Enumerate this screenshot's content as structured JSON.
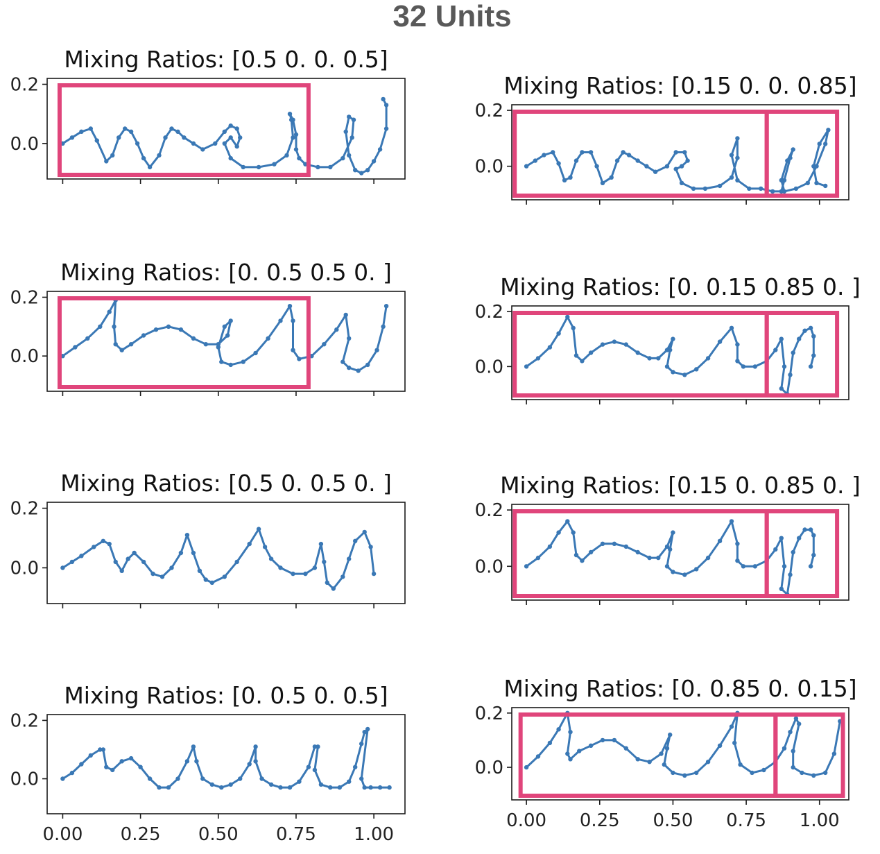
{
  "figure": {
    "title": "32 Units",
    "colors": {
      "series": "#3a78b5",
      "highlight": "#e0457b",
      "axis": "#1a1a1a"
    }
  },
  "chart_data": [
    {
      "type": "line",
      "title": "Mixing Ratios: [0.5 0.  0.  0.5]",
      "xlim": [
        -0.05,
        1.1
      ],
      "ylim": [
        -0.12,
        0.22
      ],
      "yticks": [
        "0.0",
        "0.2"
      ],
      "xticks": [
        "0.00",
        "0.25",
        "0.50",
        "0.75",
        "1.00"
      ],
      "show_x_tick_labels": false,
      "highlight_x": [
        [
          -0.01,
          0.79
        ]
      ],
      "series": [
        {
          "x": [
            0.0,
            0.03,
            0.06,
            0.09,
            0.11,
            0.14,
            0.16,
            0.18,
            0.2,
            0.22,
            0.24,
            0.26,
            0.28,
            0.31,
            0.33,
            0.35,
            0.37,
            0.39,
            0.42,
            0.45,
            0.49,
            0.52,
            0.54,
            0.56,
            0.57,
            0.56,
            0.54,
            0.52,
            0.54,
            0.58,
            0.63,
            0.68,
            0.72,
            0.74,
            0.735,
            0.73,
            0.74,
            0.75,
            0.75,
            0.76,
            0.78,
            0.82,
            0.86,
            0.9,
            0.93,
            0.935,
            0.92,
            0.91,
            0.92,
            0.94,
            0.96,
            0.98,
            1.0,
            1.02,
            1.04,
            1.04,
            1.03
          ],
          "y": [
            0.0,
            0.02,
            0.04,
            0.05,
            0.01,
            -0.06,
            -0.04,
            0.02,
            0.05,
            0.04,
            0.0,
            -0.05,
            -0.08,
            -0.04,
            0.02,
            0.05,
            0.04,
            0.02,
            0.0,
            -0.02,
            0.0,
            0.04,
            0.06,
            0.05,
            0.02,
            -0.01,
            0.02,
            0.0,
            -0.05,
            -0.08,
            -0.08,
            -0.07,
            -0.04,
            0.02,
            0.08,
            0.1,
            0.08,
            0.03,
            -0.02,
            -0.05,
            -0.07,
            -0.08,
            -0.08,
            -0.05,
            0.02,
            0.08,
            0.09,
            0.04,
            -0.04,
            -0.09,
            -0.1,
            -0.09,
            -0.06,
            -0.02,
            0.05,
            0.13,
            0.15
          ]
        }
      ]
    },
    {
      "type": "line",
      "title": "Mixing Ratios: [0.15 0.   0.   0.85]",
      "xlim": [
        -0.05,
        1.1
      ],
      "ylim": [
        -0.12,
        0.22
      ],
      "yticks": [
        "0.0",
        "0.2"
      ],
      "xticks": [
        "0.00",
        "0.25",
        "0.50",
        "0.75",
        "1.00"
      ],
      "show_x_tick_labels": false,
      "highlight_x": [
        [
          -0.04,
          0.82
        ],
        [
          0.82,
          1.06
        ]
      ],
      "series": [
        {
          "x": [
            0.0,
            0.03,
            0.06,
            0.09,
            0.11,
            0.13,
            0.15,
            0.17,
            0.19,
            0.22,
            0.24,
            0.26,
            0.29,
            0.31,
            0.33,
            0.35,
            0.38,
            0.41,
            0.44,
            0.48,
            0.51,
            0.54,
            0.55,
            0.53,
            0.51,
            0.53,
            0.57,
            0.61,
            0.66,
            0.7,
            0.72,
            0.72,
            0.7,
            0.72,
            0.76,
            0.8,
            0.84,
            0.87,
            0.88,
            0.9,
            0.91,
            0.89,
            0.87,
            0.88,
            0.92,
            0.96,
            0.99,
            1.02,
            1.03,
            1.0,
            0.98,
            0.99,
            1.02
          ],
          "y": [
            0.0,
            0.02,
            0.04,
            0.05,
            0.01,
            -0.05,
            -0.04,
            0.02,
            0.05,
            0.05,
            0.0,
            -0.06,
            -0.04,
            0.02,
            0.05,
            0.04,
            0.02,
            0.0,
            -0.02,
            0.0,
            0.05,
            0.05,
            0.02,
            0.0,
            -0.01,
            -0.06,
            -0.08,
            -0.08,
            -0.07,
            -0.04,
            0.03,
            0.1,
            0.04,
            -0.05,
            -0.08,
            -0.08,
            -0.09,
            -0.09,
            -0.05,
            0.03,
            0.06,
            0.02,
            -0.05,
            -0.09,
            -0.08,
            -0.06,
            0.0,
            0.08,
            0.13,
            0.08,
            0.0,
            -0.06,
            -0.07
          ]
        }
      ]
    },
    {
      "type": "line",
      "title": "Mixing Ratios: [0.  0.5 0.5 0. ]",
      "xlim": [
        -0.05,
        1.1
      ],
      "ylim": [
        -0.12,
        0.22
      ],
      "yticks": [
        "0.0",
        "0.2"
      ],
      "xticks": [
        "0.00",
        "0.25",
        "0.50",
        "0.75",
        "1.00"
      ],
      "show_x_tick_labels": false,
      "highlight_x": [
        [
          -0.01,
          0.79
        ]
      ],
      "series": [
        {
          "x": [
            0.0,
            0.04,
            0.08,
            0.12,
            0.15,
            0.17,
            0.165,
            0.17,
            0.19,
            0.22,
            0.26,
            0.3,
            0.34,
            0.38,
            0.42,
            0.46,
            0.5,
            0.53,
            0.54,
            0.52,
            0.5,
            0.51,
            0.54,
            0.58,
            0.62,
            0.66,
            0.7,
            0.73,
            0.74,
            0.74,
            0.76,
            0.8,
            0.84,
            0.88,
            0.91,
            0.92,
            0.9,
            0.92,
            0.95,
            0.98,
            1.01,
            1.03,
            1.04
          ],
          "y": [
            0.0,
            0.03,
            0.06,
            0.1,
            0.15,
            0.19,
            0.1,
            0.04,
            0.02,
            0.04,
            0.07,
            0.09,
            0.1,
            0.09,
            0.06,
            0.04,
            0.04,
            0.07,
            0.12,
            0.1,
            0.03,
            -0.02,
            -0.03,
            -0.02,
            0.01,
            0.06,
            0.12,
            0.17,
            0.12,
            0.02,
            -0.01,
            0.0,
            0.04,
            0.09,
            0.14,
            0.06,
            -0.02,
            -0.04,
            -0.05,
            -0.03,
            0.02,
            0.1,
            0.17
          ]
        }
      ]
    },
    {
      "type": "line",
      "title": "Mixing Ratios: [0.   0.15 0.85 0.  ]",
      "xlim": [
        -0.05,
        1.1
      ],
      "ylim": [
        -0.12,
        0.22
      ],
      "yticks": [
        "0.0",
        "0.2"
      ],
      "xticks": [
        "0.00",
        "0.25",
        "0.50",
        "0.75",
        "1.00"
      ],
      "show_x_tick_labels": false,
      "highlight_x": [
        [
          -0.04,
          0.82
        ],
        [
          0.82,
          1.06
        ]
      ],
      "series": [
        {
          "x": [
            0.0,
            0.04,
            0.08,
            0.11,
            0.14,
            0.16,
            0.17,
            0.19,
            0.22,
            0.26,
            0.3,
            0.34,
            0.38,
            0.42,
            0.45,
            0.48,
            0.5,
            0.49,
            0.48,
            0.5,
            0.54,
            0.58,
            0.62,
            0.66,
            0.7,
            0.72,
            0.72,
            0.74,
            0.78,
            0.82,
            0.85,
            0.87,
            0.88,
            0.87,
            0.89,
            0.9,
            0.91,
            0.93,
            0.95,
            0.97,
            0.98,
            0.98,
            0.97
          ],
          "y": [
            0.0,
            0.03,
            0.07,
            0.12,
            0.18,
            0.14,
            0.04,
            0.02,
            0.05,
            0.08,
            0.09,
            0.08,
            0.05,
            0.03,
            0.03,
            0.06,
            0.1,
            0.06,
            0.0,
            -0.02,
            -0.03,
            -0.01,
            0.03,
            0.09,
            0.14,
            0.08,
            0.02,
            0.0,
            0.0,
            0.02,
            0.06,
            0.1,
            0.0,
            -0.08,
            -0.1,
            -0.03,
            0.05,
            0.1,
            0.13,
            0.14,
            0.11,
            0.04,
            0.0
          ]
        }
      ]
    },
    {
      "type": "line",
      "title": "Mixing Ratios: [0.5 0.  0.5 0. ]",
      "xlim": [
        -0.05,
        1.1
      ],
      "ylim": [
        -0.12,
        0.22
      ],
      "yticks": [
        "0.0",
        "0.2"
      ],
      "xticks": [
        "0.00",
        "0.25",
        "0.50",
        "0.75",
        "1.00"
      ],
      "show_x_tick_labels": false,
      "highlight_x": [],
      "series": [
        {
          "x": [
            0.0,
            0.03,
            0.06,
            0.1,
            0.13,
            0.15,
            0.17,
            0.19,
            0.21,
            0.23,
            0.26,
            0.29,
            0.32,
            0.35,
            0.38,
            0.4,
            0.42,
            0.44,
            0.46,
            0.48,
            0.52,
            0.56,
            0.6,
            0.63,
            0.65,
            0.67,
            0.7,
            0.74,
            0.78,
            0.81,
            0.83,
            0.84,
            0.85,
            0.87,
            0.9,
            0.92,
            0.94,
            0.97,
            0.99,
            1.0
          ],
          "y": [
            0.0,
            0.02,
            0.04,
            0.07,
            0.09,
            0.08,
            0.02,
            -0.01,
            0.03,
            0.05,
            0.02,
            -0.02,
            -0.03,
            0.0,
            0.05,
            0.11,
            0.05,
            -0.01,
            -0.04,
            -0.05,
            -0.03,
            0.02,
            0.08,
            0.13,
            0.07,
            0.03,
            0.0,
            -0.02,
            -0.02,
            0.0,
            0.08,
            0.02,
            -0.05,
            -0.07,
            -0.03,
            0.03,
            0.09,
            0.12,
            0.07,
            -0.02
          ]
        }
      ]
    },
    {
      "type": "line",
      "title": "Mixing Ratios: [0.15 0.   0.85 0.  ]",
      "xlim": [
        -0.05,
        1.1
      ],
      "ylim": [
        -0.12,
        0.22
      ],
      "yticks": [
        "0.0",
        "0.2"
      ],
      "xticks": [
        "0.00",
        "0.25",
        "0.50",
        "0.75",
        "1.00"
      ],
      "show_x_tick_labels": false,
      "highlight_x": [
        [
          -0.04,
          0.82
        ],
        [
          0.82,
          1.06
        ]
      ],
      "series": [
        {
          "x": [
            0.0,
            0.04,
            0.08,
            0.11,
            0.14,
            0.16,
            0.17,
            0.19,
            0.22,
            0.26,
            0.3,
            0.34,
            0.38,
            0.42,
            0.45,
            0.48,
            0.5,
            0.49,
            0.48,
            0.5,
            0.54,
            0.58,
            0.62,
            0.66,
            0.7,
            0.72,
            0.72,
            0.74,
            0.78,
            0.82,
            0.85,
            0.87,
            0.88,
            0.87,
            0.89,
            0.9,
            0.91,
            0.93,
            0.95,
            0.97,
            0.98,
            0.98,
            0.97
          ],
          "y": [
            0.0,
            0.03,
            0.07,
            0.12,
            0.16,
            0.12,
            0.04,
            0.02,
            0.05,
            0.08,
            0.08,
            0.07,
            0.05,
            0.03,
            0.03,
            0.07,
            0.12,
            0.06,
            0.0,
            -0.02,
            -0.03,
            -0.01,
            0.03,
            0.09,
            0.16,
            0.08,
            0.02,
            0.0,
            0.0,
            0.02,
            0.06,
            0.1,
            0.0,
            -0.08,
            -0.1,
            -0.03,
            0.05,
            0.1,
            0.13,
            0.13,
            0.11,
            0.04,
            0.0
          ]
        }
      ]
    },
    {
      "type": "line",
      "title": "Mixing Ratios: [0.  0.5 0.  0.5]",
      "xlim": [
        -0.05,
        1.1
      ],
      "ylim": [
        -0.12,
        0.22
      ],
      "yticks": [
        "0.0",
        "0.2"
      ],
      "xticks": [
        "0.00",
        "0.25",
        "0.50",
        "0.75",
        "1.00"
      ],
      "show_x_tick_labels": true,
      "highlight_x": [],
      "series": [
        {
          "x": [
            0.0,
            0.03,
            0.06,
            0.09,
            0.12,
            0.13,
            0.14,
            0.16,
            0.19,
            0.22,
            0.25,
            0.28,
            0.31,
            0.34,
            0.37,
            0.4,
            0.42,
            0.43,
            0.45,
            0.48,
            0.51,
            0.54,
            0.57,
            0.6,
            0.62,
            0.62,
            0.64,
            0.67,
            0.7,
            0.73,
            0.76,
            0.79,
            0.81,
            0.82,
            0.81,
            0.83,
            0.86,
            0.89,
            0.92,
            0.94,
            0.96,
            0.97,
            0.98,
            0.96,
            0.97,
            0.99,
            1.02,
            1.05
          ],
          "y": [
            0.0,
            0.02,
            0.05,
            0.08,
            0.1,
            0.1,
            0.04,
            0.03,
            0.06,
            0.07,
            0.04,
            0.0,
            -0.03,
            -0.03,
            0.0,
            0.06,
            0.11,
            0.06,
            0.0,
            -0.02,
            -0.03,
            -0.02,
            0.0,
            0.05,
            0.11,
            0.06,
            0.0,
            -0.02,
            -0.03,
            -0.03,
            -0.01,
            0.04,
            0.11,
            0.11,
            0.03,
            -0.02,
            -0.03,
            -0.03,
            -0.01,
            0.04,
            0.12,
            0.16,
            0.17,
            0.0,
            -0.03,
            -0.03,
            -0.03,
            -0.03
          ]
        }
      ]
    },
    {
      "type": "line",
      "title": "Mixing Ratios: [0.   0.85 0.   0.15]",
      "xlim": [
        -0.05,
        1.1
      ],
      "ylim": [
        -0.12,
        0.22
      ],
      "yticks": [
        "0.0",
        "0.2"
      ],
      "xticks": [
        "0.00",
        "0.25",
        "0.50",
        "0.75",
        "1.00"
      ],
      "show_x_tick_labels": true,
      "highlight_x": [
        [
          -0.02,
          0.85
        ],
        [
          0.85,
          1.08
        ]
      ],
      "series": [
        {
          "x": [
            0.0,
            0.04,
            0.08,
            0.11,
            0.14,
            0.15,
            0.14,
            0.15,
            0.18,
            0.22,
            0.26,
            0.3,
            0.34,
            0.38,
            0.42,
            0.46,
            0.49,
            0.48,
            0.47,
            0.5,
            0.54,
            0.58,
            0.62,
            0.66,
            0.7,
            0.72,
            0.71,
            0.73,
            0.77,
            0.81,
            0.85,
            0.88,
            0.9,
            0.92,
            0.93,
            0.91,
            0.91,
            0.94,
            0.98,
            1.02,
            1.05,
            1.07
          ],
          "y": [
            0.0,
            0.04,
            0.09,
            0.14,
            0.2,
            0.13,
            0.05,
            0.03,
            0.06,
            0.08,
            0.1,
            0.1,
            0.07,
            0.03,
            0.02,
            0.05,
            0.12,
            0.07,
            0.01,
            -0.02,
            -0.03,
            -0.02,
            0.02,
            0.08,
            0.15,
            0.2,
            0.09,
            0.01,
            -0.02,
            -0.01,
            0.02,
            0.07,
            0.13,
            0.18,
            0.16,
            0.06,
            0.0,
            -0.02,
            -0.03,
            -0.02,
            0.05,
            0.17
          ]
        }
      ]
    }
  ]
}
